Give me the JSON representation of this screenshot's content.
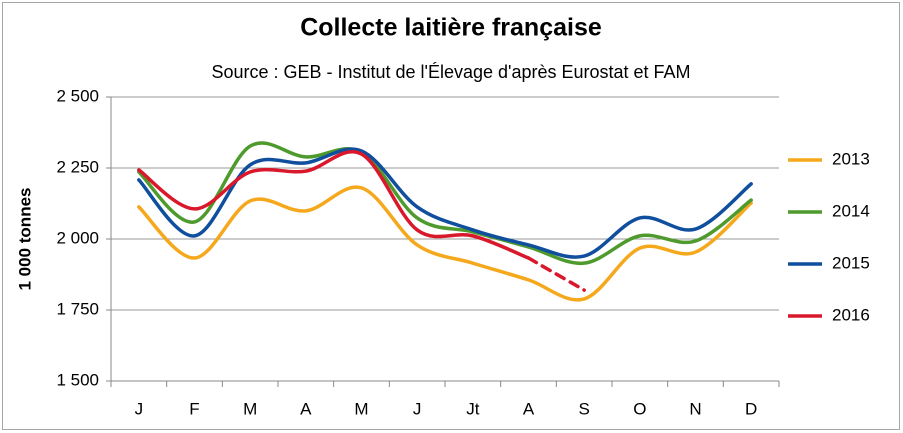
{
  "chart_data": {
    "type": "line",
    "title": "Collecte laitière française",
    "subtitle": "Source : GEB - Institut de l'Élevage d'après Eurostat et FAM",
    "y_label": "1 000 tonnes",
    "categories": [
      "J",
      "F",
      "M",
      "A",
      "M",
      "J",
      "Jt",
      "A",
      "S",
      "O",
      "N",
      "D"
    ],
    "ylim": [
      1500,
      2500
    ],
    "yticks": [
      {
        "value": 1500,
        "label": "1 500"
      },
      {
        "value": 1750,
        "label": "1 750"
      },
      {
        "value": 2000,
        "label": "2 000"
      },
      {
        "value": 2250,
        "label": "2 250"
      },
      {
        "value": 2500,
        "label": "2 500"
      }
    ],
    "grid": true,
    "legend": "right",
    "series": [
      {
        "name": "2013",
        "color": "#f5a81c",
        "values": [
          2113,
          1933,
          2134,
          2099,
          2180,
          1979,
          1915,
          1856,
          1789,
          1968,
          1954,
          2127
        ]
      },
      {
        "name": "2014",
        "color": "#4e9a2c",
        "values": [
          2236,
          2060,
          2327,
          2289,
          2306,
          2074,
          2025,
          1972,
          1915,
          2011,
          1993,
          2137
        ]
      },
      {
        "name": "2015",
        "color": "#0f4f9e",
        "values": [
          2208,
          2011,
          2261,
          2268,
          2310,
          2113,
          2032,
          1979,
          1940,
          2074,
          2035,
          2194
        ]
      },
      {
        "name": "2016",
        "color": "#d9182b",
        "dashed_after": 7,
        "values": [
          2243,
          2106,
          2236,
          2239,
          2299,
          2032,
          2011,
          1933,
          1820,
          null,
          null,
          null
        ]
      }
    ]
  }
}
